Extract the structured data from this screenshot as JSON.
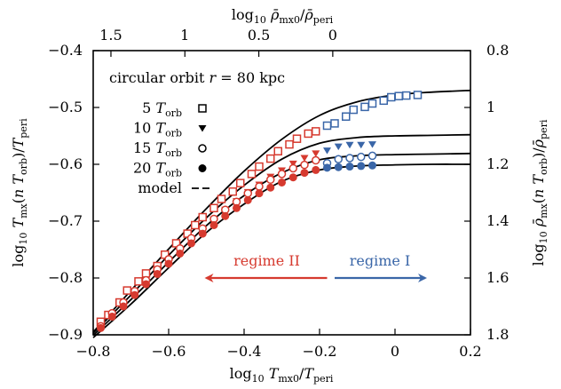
{
  "chart_data": {
    "type": "scatter",
    "title": "",
    "annotation_title": "circular orbit r = 80 kpc",
    "xlabel": "log10 Tmx0/Tperi",
    "ylabel": "log10 Tmx(n Torb)/Tperi",
    "top_xlabel": "log10 ρ̄mx0/ρ̄peri",
    "right_ylabel": "log10 ρ̄mx(n Torb)/ρ̄peri",
    "xlim": [
      -0.8,
      0.2
    ],
    "ylim": [
      -0.9,
      -0.4
    ],
    "grid": false,
    "legend_position": "top-left",
    "x_ticks": [
      -0.8,
      -0.6,
      -0.4,
      -0.2,
      0,
      0.2
    ],
    "x_tick_labels": [
      "−0.8",
      "−0.6",
      "−0.4",
      "−0.2",
      "0",
      "0.2"
    ],
    "y_ticks": [
      -0.9,
      -0.8,
      -0.7,
      -0.6,
      -0.5,
      -0.4
    ],
    "y_tick_labels": [
      "−0.9",
      "−0.8",
      "−0.7",
      "−0.6",
      "−0.5",
      "−0.4"
    ],
    "top_ticks": [
      1.5,
      1,
      0.5,
      0
    ],
    "top_tick_labels": [
      "1.5",
      "1",
      "0.5",
      "0"
    ],
    "top_tick_x": [
      -0.753,
      -0.557,
      -0.361,
      -0.165
    ],
    "right_ticks": [
      0.8,
      1,
      1.2,
      1.4,
      1.6,
      1.8
    ],
    "right_tick_labels": [
      "0.8",
      "1",
      "1.2",
      "1.4",
      "1.6",
      "1.8"
    ],
    "colors": {
      "regime_II": "#d63a2f",
      "regime_I": "#3a66a8",
      "model": "#000000"
    },
    "series": [
      {
        "name": "5 Torb",
        "marker": "open-square",
        "x": [
          -0.78,
          -0.76,
          -0.73,
          -0.71,
          -0.68,
          -0.66,
          -0.63,
          -0.61,
          -0.58,
          -0.55,
          -0.53,
          -0.51,
          -0.48,
          -0.46,
          -0.43,
          -0.41,
          -0.38,
          -0.36,
          -0.33,
          -0.31,
          -0.28,
          -0.26,
          -0.23,
          -0.21,
          -0.18,
          -0.16,
          -0.13,
          -0.11,
          -0.08,
          -0.06,
          -0.03,
          -0.01,
          0.01,
          0.03,
          0.06
        ],
        "y": [
          -0.877,
          -0.865,
          -0.843,
          -0.822,
          -0.806,
          -0.792,
          -0.779,
          -0.759,
          -0.739,
          -0.722,
          -0.707,
          -0.693,
          -0.677,
          -0.661,
          -0.648,
          -0.633,
          -0.617,
          -0.604,
          -0.59,
          -0.577,
          -0.565,
          -0.555,
          -0.546,
          -0.542,
          -0.532,
          -0.528,
          -0.516,
          -0.504,
          -0.499,
          -0.493,
          -0.488,
          -0.482,
          -0.48,
          -0.479,
          -0.478
        ],
        "regime_split_x": -0.18
      },
      {
        "name": "10 Torb",
        "marker": "filled-triangle-down",
        "x": [
          -0.75,
          -0.72,
          -0.69,
          -0.66,
          -0.63,
          -0.6,
          -0.57,
          -0.54,
          -0.51,
          -0.48,
          -0.45,
          -0.42,
          -0.39,
          -0.36,
          -0.33,
          -0.3,
          -0.27,
          -0.24,
          -0.21,
          -0.18,
          -0.15,
          -0.12,
          -0.09,
          -0.06
        ],
        "y": [
          -0.868,
          -0.848,
          -0.829,
          -0.808,
          -0.787,
          -0.77,
          -0.751,
          -0.732,
          -0.714,
          -0.697,
          -0.68,
          -0.665,
          -0.649,
          -0.636,
          -0.622,
          -0.611,
          -0.599,
          -0.589,
          -0.581,
          -0.576,
          -0.569,
          -0.566,
          -0.566,
          -0.565
        ],
        "regime_split_x": -0.18
      },
      {
        "name": "15 Torb",
        "marker": "open-circle",
        "x": [
          -0.78,
          -0.75,
          -0.72,
          -0.69,
          -0.66,
          -0.63,
          -0.6,
          -0.57,
          -0.54,
          -0.51,
          -0.48,
          -0.45,
          -0.42,
          -0.39,
          -0.36,
          -0.33,
          -0.3,
          -0.27,
          -0.24,
          -0.21,
          -0.18,
          -0.15,
          -0.12,
          -0.09,
          -0.06
        ],
        "y": [
          -0.885,
          -0.862,
          -0.843,
          -0.823,
          -0.804,
          -0.785,
          -0.767,
          -0.748,
          -0.73,
          -0.713,
          -0.696,
          -0.68,
          -0.666,
          -0.651,
          -0.639,
          -0.627,
          -0.617,
          -0.607,
          -0.601,
          -0.593,
          -0.598,
          -0.591,
          -0.589,
          -0.587,
          -0.585
        ],
        "regime_split_x": -0.18
      },
      {
        "name": "20 Torb",
        "marker": "filled-circle",
        "x": [
          -0.78,
          -0.75,
          -0.72,
          -0.69,
          -0.66,
          -0.63,
          -0.6,
          -0.57,
          -0.54,
          -0.51,
          -0.48,
          -0.45,
          -0.42,
          -0.39,
          -0.36,
          -0.33,
          -0.3,
          -0.27,
          -0.24,
          -0.21,
          -0.18,
          -0.15,
          -0.12,
          -0.09,
          -0.06
        ],
        "y": [
          -0.888,
          -0.868,
          -0.85,
          -0.83,
          -0.811,
          -0.793,
          -0.775,
          -0.757,
          -0.739,
          -0.722,
          -0.707,
          -0.691,
          -0.677,
          -0.663,
          -0.651,
          -0.641,
          -0.632,
          -0.623,
          -0.615,
          -0.61,
          -0.606,
          -0.605,
          -0.604,
          -0.603,
          -0.602
        ],
        "regime_split_x": -0.18
      }
    ],
    "model_curves": [
      {
        "label": "5 Torb",
        "x": [
          -0.8,
          -0.7,
          -0.6,
          -0.5,
          -0.4,
          -0.3,
          -0.2,
          -0.1,
          0.0,
          0.1,
          0.2
        ],
        "y": [
          -0.895,
          -0.822,
          -0.749,
          -0.678,
          -0.612,
          -0.556,
          -0.514,
          -0.49,
          -0.478,
          -0.473,
          -0.47
        ]
      },
      {
        "label": "10 Torb",
        "x": [
          -0.8,
          -0.7,
          -0.6,
          -0.5,
          -0.4,
          -0.3,
          -0.2,
          -0.1,
          0.0,
          0.1,
          0.2
        ],
        "y": [
          -0.897,
          -0.83,
          -0.76,
          -0.694,
          -0.637,
          -0.591,
          -0.563,
          -0.553,
          -0.55,
          -0.549,
          -0.548
        ]
      },
      {
        "label": "15 Torb",
        "x": [
          -0.8,
          -0.7,
          -0.6,
          -0.5,
          -0.4,
          -0.3,
          -0.2,
          -0.1,
          0.0,
          0.1,
          0.2
        ],
        "y": [
          -0.901,
          -0.838,
          -0.772,
          -0.708,
          -0.655,
          -0.615,
          -0.592,
          -0.585,
          -0.583,
          -0.582,
          -0.581
        ]
      },
      {
        "label": "20 Torb",
        "x": [
          -0.8,
          -0.7,
          -0.6,
          -0.5,
          -0.4,
          -0.3,
          -0.2,
          -0.1,
          0.0,
          0.1,
          0.2
        ],
        "y": [
          -0.905,
          -0.846,
          -0.782,
          -0.72,
          -0.67,
          -0.63,
          -0.61,
          -0.603,
          -0.601,
          -0.6,
          -0.6
        ]
      }
    ],
    "legend": [
      {
        "label": "5 Torb",
        "marker": "open-square"
      },
      {
        "label": "10 Torb",
        "marker": "filled-triangle-down"
      },
      {
        "label": "15 Torb",
        "marker": "open-circle"
      },
      {
        "label": "20 Torb",
        "marker": "filled-circle"
      },
      {
        "label": "model",
        "marker": "dashed-line"
      }
    ],
    "annotations": [
      {
        "text": "regime II",
        "color": "#d63a2f",
        "arrow_from_x": -0.18,
        "arrow_to_x": -0.5,
        "y": -0.8
      },
      {
        "text": "regime I",
        "color": "#3a66a8",
        "arrow_from_x": -0.16,
        "arrow_to_x": 0.08,
        "y": -0.8
      }
    ]
  }
}
